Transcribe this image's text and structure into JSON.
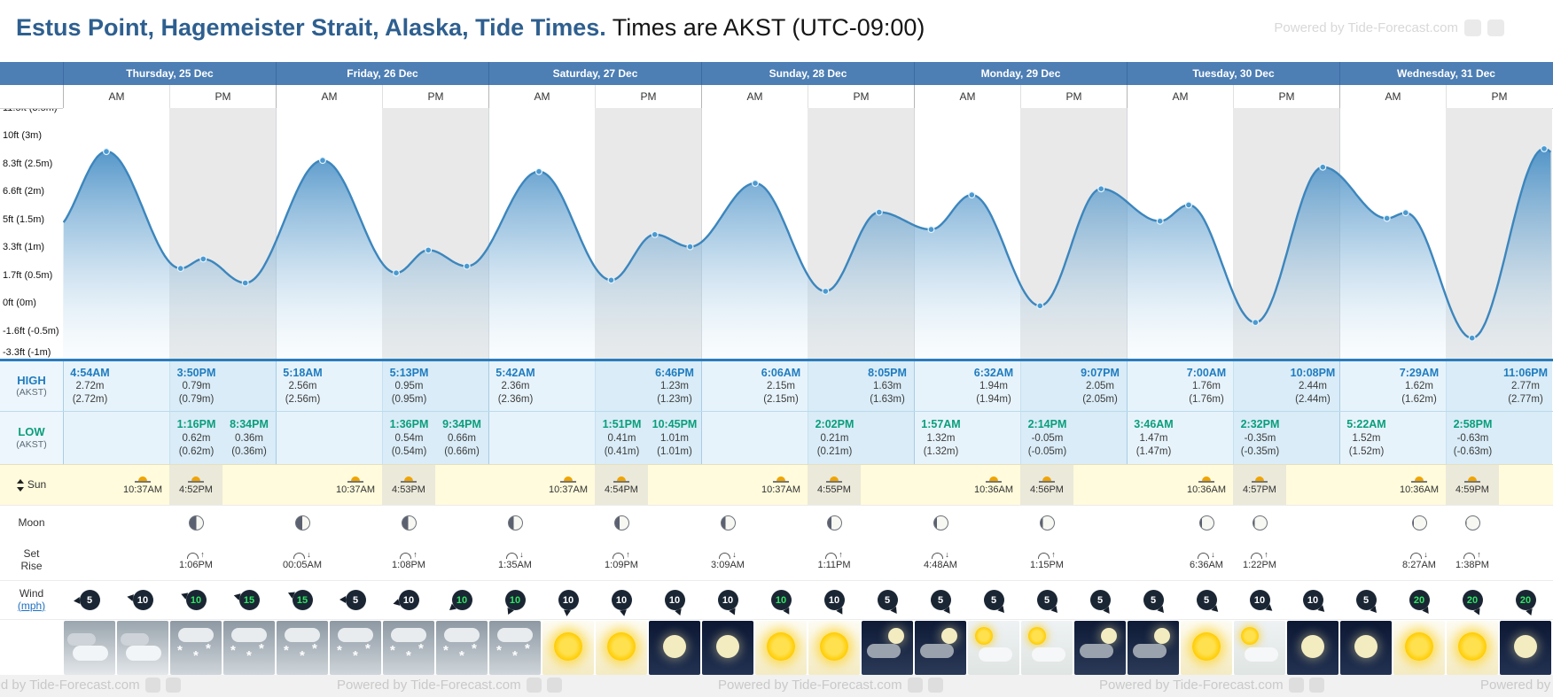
{
  "title": {
    "location": "Estus Point, Hagemeister Strait, Alaska, Tide Times.",
    "timezone_note": " Times are AKST (UTC-09:00)"
  },
  "watermark": {
    "text": "Powered by Tide-Forecast.com"
  },
  "ampm": {
    "am": "AM",
    "pm": "PM"
  },
  "days": [
    {
      "label": "Thursday, 25 Dec"
    },
    {
      "label": "Friday, 26 Dec"
    },
    {
      "label": "Saturday, 27 Dec"
    },
    {
      "label": "Sunday, 28 Dec"
    },
    {
      "label": "Monday, 29 Dec"
    },
    {
      "label": "Tuesday, 30 Dec"
    },
    {
      "label": "Wednesday, 31 Dec"
    }
  ],
  "y_axis": [
    {
      "text": "11.5ft (3.5m)",
      "value": 3.5
    },
    {
      "text": "10ft (3m)",
      "value": 3.0
    },
    {
      "text": "8.3ft (2.5m)",
      "value": 2.5
    },
    {
      "text": "6.6ft (2m)",
      "value": 2.0
    },
    {
      "text": "5ft (1.5m)",
      "value": 1.5
    },
    {
      "text": "3.3ft (1m)",
      "value": 1.0
    },
    {
      "text": "1.7ft (0.5m)",
      "value": 0.5
    },
    {
      "text": "0ft (0m)",
      "value": 0.0
    },
    {
      "text": "-1.6ft (-0.5m)",
      "value": -0.5
    },
    {
      "text": "-3.3ft (-1m)",
      "value": -1.0
    }
  ],
  "chart_data": {
    "type": "area",
    "title": "Tide height curve, Thu 25 Dec - Wed 31 Dec",
    "x_unit": "hours from Thu 25 Dec 00:00 AKST",
    "y_unit": "m",
    "y_range_m": [
      -1,
      3.5
    ],
    "lead": {
      "t": -1.2,
      "h": 1.3
    },
    "tail": {
      "t": 172.5,
      "h": 1.4
    },
    "extremes": [
      {
        "t": 4.9,
        "h": 2.72,
        "kind": "high",
        "label": "4:54AM"
      },
      {
        "t": 13.27,
        "h": 0.62,
        "kind": "low",
        "label": "1:16PM"
      },
      {
        "t": 15.83,
        "h": 0.79,
        "kind": "high",
        "label": "3:50PM"
      },
      {
        "t": 20.57,
        "h": 0.36,
        "kind": "low",
        "label": "8:34PM"
      },
      {
        "t": 29.3,
        "h": 2.56,
        "kind": "high",
        "label": "5:18AM"
      },
      {
        "t": 37.6,
        "h": 0.54,
        "kind": "low",
        "label": "1:36PM"
      },
      {
        "t": 41.22,
        "h": 0.95,
        "kind": "high",
        "label": "5:13PM"
      },
      {
        "t": 45.57,
        "h": 0.66,
        "kind": "low",
        "label": "9:34PM"
      },
      {
        "t": 53.7,
        "h": 2.36,
        "kind": "high",
        "label": "5:42AM"
      },
      {
        "t": 61.85,
        "h": 0.41,
        "kind": "low",
        "label": "1:51PM"
      },
      {
        "t": 66.77,
        "h": 1.23,
        "kind": "high",
        "label": "6:46PM"
      },
      {
        "t": 70.75,
        "h": 1.01,
        "kind": "low",
        "label": "10:45PM"
      },
      {
        "t": 78.1,
        "h": 2.15,
        "kind": "high",
        "label": "6:06AM"
      },
      {
        "t": 86.03,
        "h": 0.21,
        "kind": "low",
        "label": "2:02PM"
      },
      {
        "t": 92.08,
        "h": 1.63,
        "kind": "high",
        "label": "8:05PM"
      },
      {
        "t": 97.95,
        "h": 1.32,
        "kind": "low",
        "label": "1:57AM"
      },
      {
        "t": 102.53,
        "h": 1.94,
        "kind": "high",
        "label": "6:32AM"
      },
      {
        "t": 110.23,
        "h": -0.05,
        "kind": "low",
        "label": "2:14PM"
      },
      {
        "t": 117.12,
        "h": 2.05,
        "kind": "high",
        "label": "9:07PM"
      },
      {
        "t": 123.77,
        "h": 1.47,
        "kind": "low",
        "label": "3:46AM"
      },
      {
        "t": 127.0,
        "h": 1.76,
        "kind": "high",
        "label": "7:00AM"
      },
      {
        "t": 134.53,
        "h": -0.35,
        "kind": "low",
        "label": "2:32PM"
      },
      {
        "t": 142.13,
        "h": 2.44,
        "kind": "high",
        "label": "10:08PM"
      },
      {
        "t": 149.37,
        "h": 1.52,
        "kind": "low",
        "label": "5:22AM"
      },
      {
        "t": 151.48,
        "h": 1.62,
        "kind": "high",
        "label": "7:29AM"
      },
      {
        "t": 158.97,
        "h": -0.63,
        "kind": "low",
        "label": "2:58PM"
      },
      {
        "t": 167.1,
        "h": 2.77,
        "kind": "high",
        "label": "11:06PM"
      }
    ]
  },
  "rows": {
    "high": {
      "label": "HIGH",
      "sub": "(AKST)"
    },
    "low": {
      "label": "LOW",
      "sub": "(AKST)"
    },
    "sun": {
      "label": "Sun"
    },
    "moon": {
      "label": "Moon"
    },
    "setrise": {
      "top": "Set",
      "bottom": "Rise"
    },
    "wind": {
      "label": "Wind",
      "unit": "(mph)"
    }
  },
  "high_days": [
    [
      {
        "time": "4:54AM",
        "height": "2.72m",
        "height_alt": "(2.72m)"
      },
      {
        "time": "3:50PM",
        "height": "0.79m",
        "height_alt": "(0.79m)"
      }
    ],
    [
      {
        "time": "5:18AM",
        "height": "2.56m",
        "height_alt": "(2.56m)"
      },
      {
        "time": "5:13PM",
        "height": "0.95m",
        "height_alt": "(0.95m)"
      }
    ],
    [
      {
        "time": "5:42AM",
        "height": "2.36m",
        "height_alt": "(2.36m)"
      },
      {
        "time": "6:46PM",
        "height": "1.23m",
        "height_alt": "(1.23m)"
      }
    ],
    [
      {
        "time": "6:06AM",
        "height": "2.15m",
        "height_alt": "(2.15m)"
      },
      {
        "time": "8:05PM",
        "height": "1.63m",
        "height_alt": "(1.63m)"
      }
    ],
    [
      {
        "time": "6:32AM",
        "height": "1.94m",
        "height_alt": "(1.94m)"
      },
      {
        "time": "9:07PM",
        "height": "2.05m",
        "height_alt": "(2.05m)"
      }
    ],
    [
      {
        "time": "7:00AM",
        "height": "1.76m",
        "height_alt": "(1.76m)"
      },
      {
        "time": "10:08PM",
        "height": "2.44m",
        "height_alt": "(2.44m)"
      }
    ],
    [
      {
        "time": "7:29AM",
        "height": "1.62m",
        "height_alt": "(1.62m)"
      },
      {
        "time": "11:06PM",
        "height": "2.77m",
        "height_alt": "(2.77m)"
      }
    ]
  ],
  "low_days": [
    [
      {
        "time": "1:16PM",
        "height": "0.62m",
        "height_alt": "(0.62m)"
      },
      {
        "time": "8:34PM",
        "height": "0.36m",
        "height_alt": "(0.36m)"
      }
    ],
    [
      {
        "time": "1:36PM",
        "height": "0.54m",
        "height_alt": "(0.54m)"
      },
      {
        "time": "9:34PM",
        "height": "0.66m",
        "height_alt": "(0.66m)"
      }
    ],
    [
      {
        "time": "1:51PM",
        "height": "0.41m",
        "height_alt": "(0.41m)"
      },
      {
        "time": "10:45PM",
        "height": "1.01m",
        "height_alt": "(1.01m)"
      }
    ],
    [
      {
        "time": "2:02PM",
        "height": "0.21m",
        "height_alt": "(0.21m)"
      }
    ],
    [
      {
        "time": "1:57AM",
        "height": "1.32m",
        "height_alt": "(1.32m)"
      },
      {
        "time": "2:14PM",
        "height": "-0.05m",
        "height_alt": "(-0.05m)"
      }
    ],
    [
      {
        "time": "3:46AM",
        "height": "1.47m",
        "height_alt": "(1.47m)"
      },
      {
        "time": "2:32PM",
        "height": "-0.35m",
        "height_alt": "(-0.35m)"
      }
    ],
    [
      {
        "time": "5:22AM",
        "height": "1.52m",
        "height_alt": "(1.52m)"
      },
      {
        "time": "2:58PM",
        "height": "-0.63m",
        "height_alt": "(-0.63m)"
      }
    ]
  ],
  "sun_days": [
    {
      "rise": "10:37AM",
      "set": "4:52PM"
    },
    {
      "rise": "10:37AM",
      "set": "4:53PM"
    },
    {
      "rise": "10:37AM",
      "set": "4:54PM"
    },
    {
      "rise": "10:37AM",
      "set": "4:55PM"
    },
    {
      "rise": "10:36AM",
      "set": "4:56PM"
    },
    {
      "rise": "10:36AM",
      "set": "4:57PM"
    },
    {
      "rise": "10:36AM",
      "set": "4:59PM"
    }
  ],
  "setrise_days": [
    {
      "set": null,
      "set_phase": null,
      "rise": "1:06PM",
      "rise_phase": 0.5
    },
    {
      "set": "00:05AM",
      "set_phase": 0.54,
      "rise": "1:08PM",
      "rise_phase": 0.58
    },
    {
      "set": "1:35AM",
      "set_phase": 0.62,
      "rise": "1:09PM",
      "rise_phase": 0.66
    },
    {
      "set": "3:09AM",
      "set_phase": 0.71,
      "rise": "1:11PM",
      "rise_phase": 0.74
    },
    {
      "set": "4:48AM",
      "set_phase": 0.79,
      "rise": "1:15PM",
      "rise_phase": 0.82
    },
    {
      "set": "6:36AM",
      "set_phase": 0.87,
      "rise": "1:22PM",
      "rise_phase": 0.9
    },
    {
      "set": "8:27AM",
      "set_phase": 0.94,
      "rise": "1:38PM",
      "rise_phase": 0.97
    }
  ],
  "wind_items": [
    {
      "speed": 5,
      "green": false,
      "dir": 265
    },
    {
      "speed": 10,
      "green": false,
      "dir": 280
    },
    {
      "speed": 10,
      "green": true,
      "dir": 290
    },
    {
      "speed": 15,
      "green": true,
      "dir": 285
    },
    {
      "speed": 15,
      "green": true,
      "dir": 295
    },
    {
      "speed": 5,
      "green": false,
      "dir": 270
    },
    {
      "speed": 10,
      "green": false,
      "dir": 255
    },
    {
      "speed": 10,
      "green": true,
      "dir": 230
    },
    {
      "speed": 10,
      "green": true,
      "dir": 205
    },
    {
      "speed": 10,
      "green": false,
      "dir": 185
    },
    {
      "speed": 10,
      "green": false,
      "dir": 170
    },
    {
      "speed": 10,
      "green": false,
      "dir": 160
    },
    {
      "speed": 10,
      "green": false,
      "dir": 155
    },
    {
      "speed": 10,
      "green": true,
      "dir": 150
    },
    {
      "speed": 10,
      "green": false,
      "dir": 150
    },
    {
      "speed": 5,
      "green": false,
      "dir": 145
    },
    {
      "speed": 5,
      "green": false,
      "dir": 145
    },
    {
      "speed": 5,
      "green": false,
      "dir": 140
    },
    {
      "speed": 5,
      "green": false,
      "dir": 140
    },
    {
      "speed": 5,
      "green": false,
      "dir": 145
    },
    {
      "speed": 5,
      "green": false,
      "dir": 140
    },
    {
      "speed": 5,
      "green": false,
      "dir": 135
    },
    {
      "speed": 10,
      "green": false,
      "dir": 130
    },
    {
      "speed": 10,
      "green": false,
      "dir": 135
    },
    {
      "speed": 5,
      "green": false,
      "dir": 140
    },
    {
      "speed": 20,
      "green": true,
      "dir": 145
    },
    {
      "speed": 20,
      "green": true,
      "dir": 155
    },
    {
      "speed": 20,
      "green": true,
      "dir": 160
    }
  ],
  "weather_items": [
    "cloudy",
    "cloudy",
    "snow",
    "snow",
    "snow",
    "snow",
    "snow",
    "snow",
    "snow",
    "sunny",
    "sunny",
    "night",
    "night",
    "sunny",
    "sunny",
    "night-cloud",
    "night-cloud",
    "partly",
    "partly",
    "night-cloud",
    "night-cloud",
    "sunny",
    "partly",
    "night",
    "night",
    "sunny",
    "sunny",
    "night"
  ]
}
